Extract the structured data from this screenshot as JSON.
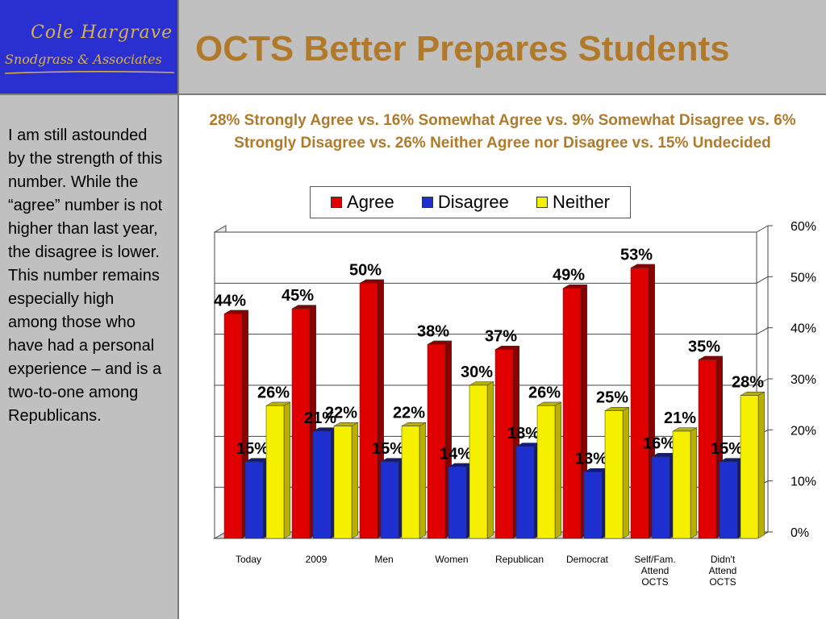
{
  "logo": {
    "line1": "Cole Hargrave",
    "line2": "Snodgrass & Associates"
  },
  "header": {
    "title": "OCTS Better Prepares Students"
  },
  "side_panel": {
    "text": "I am still astounded by the strength of this number.  While the “agree” number is not higher than last year, the disagree is lower.  This number remains especially high among those who have had a personal experience – and is a two-to-one among Republicans."
  },
  "colors": {
    "agree": "#e00000",
    "disagree": "#1e2fd0",
    "neither": "#f5f000",
    "title": "#b07a2a",
    "panel": "#c0c0c0",
    "logo_bg": "#2a2fd0"
  },
  "chart_data": {
    "type": "bar",
    "title": "28% Strongly Agree vs. 16% Somewhat Agree vs. 9% Somewhat Disagree vs. 6% Strongly Disagree vs. 26% Neither Agree nor Disagree vs. 15% Undecided",
    "categories": [
      [
        "Today"
      ],
      [
        "2009"
      ],
      [
        "Men"
      ],
      [
        "Women"
      ],
      [
        "Republican"
      ],
      [
        "Democrat"
      ],
      [
        "Self/Fam.",
        "Attend",
        "OCTS"
      ],
      [
        "Didn't",
        "Attend",
        "OCTS"
      ]
    ],
    "series": [
      {
        "name": "Agree",
        "values": [
          44,
          45,
          50,
          38,
          37,
          49,
          53,
          35
        ]
      },
      {
        "name": "Disagree",
        "values": [
          15,
          21,
          15,
          14,
          18,
          13,
          16,
          15
        ]
      },
      {
        "name": "Neither",
        "values": [
          26,
          22,
          22,
          30,
          26,
          25,
          21,
          28
        ]
      }
    ],
    "ylim": [
      0,
      60
    ],
    "yticks": [
      "0%",
      "10%",
      "20%",
      "30%",
      "40%",
      "50%",
      "60%"
    ],
    "grid": true,
    "legend_position": "top"
  }
}
